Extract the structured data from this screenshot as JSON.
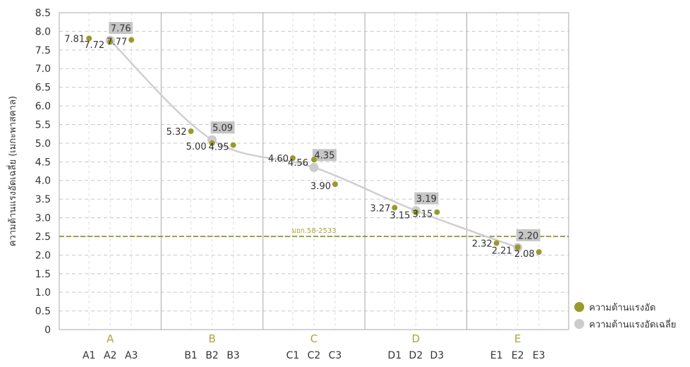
{
  "chart_data": {
    "type": "scatter",
    "ylabel": "ความต้านแรงอัดเฉลี่ย (เมกะพาสคาล)",
    "ylim": [
      0,
      8.5
    ],
    "yticks": [
      "0",
      "0.5",
      "1.0",
      "1.5",
      "2.0",
      "2.5",
      "3.0",
      "3.5",
      "4.0",
      "4.5",
      "5.0",
      "5.5",
      "6.0",
      "6.5",
      "7.0",
      "7.5",
      "8.0",
      "8.5"
    ],
    "grid": true,
    "groups": [
      {
        "name": "A",
        "samples": [
          "A1",
          "A2",
          "A3"
        ]
      },
      {
        "name": "B",
        "samples": [
          "B1",
          "B2",
          "B3"
        ]
      },
      {
        "name": "C",
        "samples": [
          "C1",
          "C2",
          "C3"
        ]
      },
      {
        "name": "D",
        "samples": [
          "D1",
          "D2",
          "D3"
        ]
      },
      {
        "name": "E",
        "samples": [
          "E1",
          "E2",
          "E3"
        ]
      }
    ],
    "series": [
      {
        "name": "ความต้านแรงอัด",
        "color": "#9a9a2c",
        "points": [
          {
            "x": "A1",
            "y": 7.81,
            "label": "7.81"
          },
          {
            "x": "A2",
            "y": 7.72,
            "label": "7.72"
          },
          {
            "x": "A3",
            "y": 7.77,
            "label": "7.77"
          },
          {
            "x": "B1",
            "y": 5.32,
            "label": "5.32"
          },
          {
            "x": "B2",
            "y": 5.0,
            "label": "5.00"
          },
          {
            "x": "B3",
            "y": 4.95,
            "label": "4.95"
          },
          {
            "x": "C1",
            "y": 4.6,
            "label": "4.60"
          },
          {
            "x": "C2",
            "y": 4.56,
            "label": "4.56"
          },
          {
            "x": "C3",
            "y": 3.9,
            "label": "3.90"
          },
          {
            "x": "D1",
            "y": 3.27,
            "label": "3.27"
          },
          {
            "x": "D2",
            "y": 3.15,
            "label": "3.15"
          },
          {
            "x": "D3",
            "y": 3.15,
            "label": "3.15"
          },
          {
            "x": "E1",
            "y": 2.32,
            "label": "2.32"
          },
          {
            "x": "E2",
            "y": 2.21,
            "label": "2.21"
          },
          {
            "x": "E3",
            "y": 2.08,
            "label": "2.08"
          }
        ]
      },
      {
        "name": "ความต้านแรงอัดเฉลี่ย",
        "color": "#cccccc",
        "points": [
          {
            "x": "A2",
            "y": 7.76,
            "label": "7.76"
          },
          {
            "x": "B2",
            "y": 5.09,
            "label": "5.09"
          },
          {
            "x": "C2",
            "y": 4.35,
            "label": "4.35"
          },
          {
            "x": "D2",
            "y": 3.19,
            "label": "3.19"
          },
          {
            "x": "E2",
            "y": 2.2,
            "label": "2.20"
          }
        ]
      }
    ],
    "reference_line": {
      "y": 2.5,
      "label": "มยก.58-2533",
      "color": "#8a8a1e"
    },
    "legend": {
      "placement": "bottom-right"
    },
    "colors": {
      "group_label": "#a8a63a",
      "grid": "#c8c8c8",
      "divider": "#a8a8a8",
      "text": "#333333",
      "label_box": "#c6c6c6"
    }
  }
}
